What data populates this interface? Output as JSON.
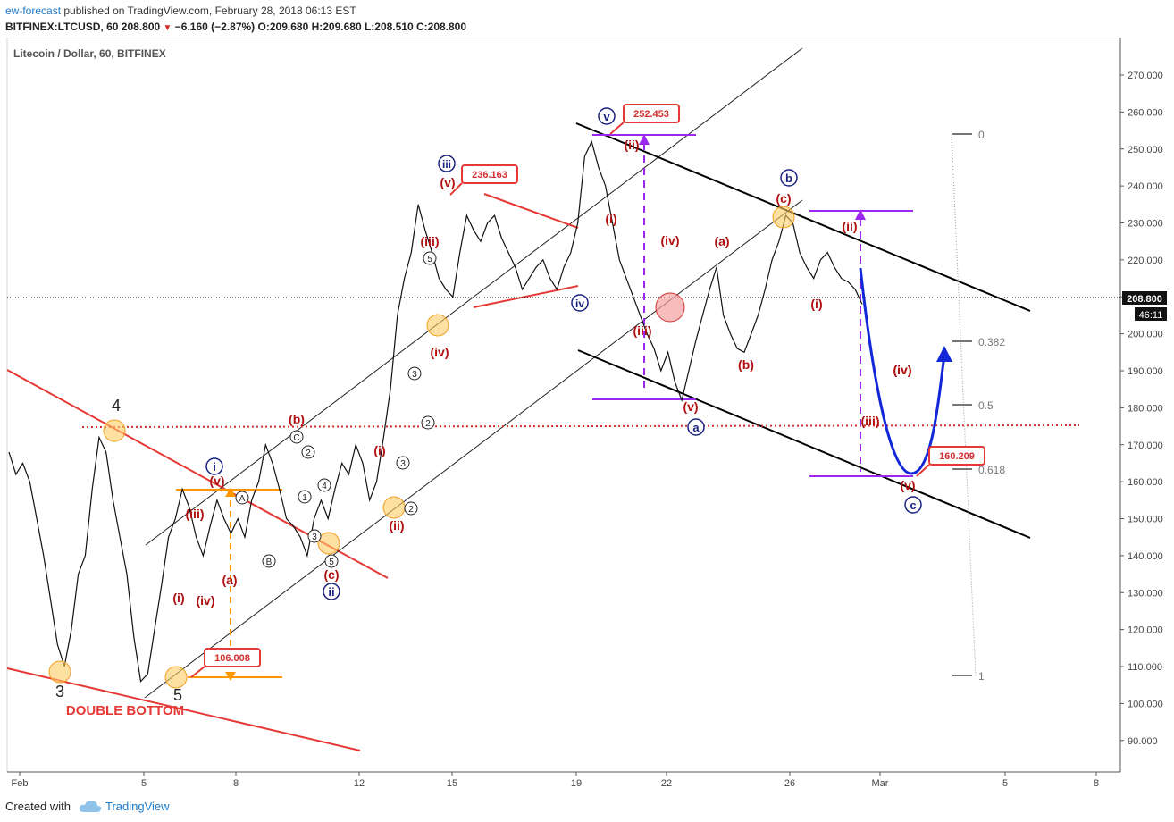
{
  "header": {
    "author": "ew-forecast",
    "published": "published on TradingView.com, February 28, 2018 06:13 EST",
    "symbol": "BITFINEX:LTCUSD, 60",
    "change_arrow": "▼",
    "change": "−6.160 (−2.87%)",
    "ohlc": "O:209.680 H:209.680 L:208.510 C:208.800"
  },
  "chart_data": {
    "type": "line",
    "title": "Litecoin / Dollar, 60, BITFINEX",
    "xlabel": "",
    "ylabel": "",
    "ylim": [
      83,
      277
    ],
    "x_ticks": [
      "Feb",
      "5",
      "8",
      "12",
      "15",
      "19",
      "22",
      "26",
      "Mar",
      "5",
      "8"
    ],
    "y_ticks": [
      "90.000",
      "100.000",
      "110.000",
      "120.000",
      "130.000",
      "140.000",
      "150.000",
      "160.000",
      "170.000",
      "180.000",
      "190.000",
      "200.000",
      "210.000",
      "220.000",
      "230.000",
      "240.000",
      "250.000",
      "260.000",
      "270.000"
    ],
    "series": [
      {
        "values": [
          168,
          162,
          165,
          160,
          150,
          140,
          128,
          116,
          110,
          120,
          135,
          140,
          158,
          172,
          168,
          155,
          145,
          135,
          118,
          106,
          108,
          120,
          132,
          145,
          150,
          158,
          153,
          145,
          140,
          148,
          155,
          150,
          146,
          150,
          145,
          155,
          160,
          170,
          165,
          158,
          150,
          148,
          145,
          140,
          150,
          155,
          150,
          158,
          165,
          162,
          170,
          165,
          155,
          160,
          172,
          185,
          205,
          215,
          222,
          235,
          228,
          222,
          215,
          212,
          210,
          222,
          232,
          228,
          225,
          230,
          232,
          226,
          222,
          218,
          212,
          215,
          218,
          220,
          215,
          212,
          218,
          222,
          230,
          248,
          252,
          245,
          240,
          230,
          220,
          215,
          210,
          205,
          200,
          196,
          190,
          195,
          187,
          182,
          190,
          198,
          205,
          212,
          218,
          205,
          200,
          196,
          195,
          200,
          205,
          212,
          220,
          225,
          232,
          230,
          222,
          218,
          215,
          220,
          222,
          218,
          215,
          214,
          212,
          208
        ]
      }
    ],
    "price_label": "208.800",
    "countdown": "46:11",
    "price_callouts": [
      "252.453",
      "236.163",
      "106.008",
      "160.209"
    ],
    "fib_levels": [
      "0",
      "0.382",
      "0.5",
      "0.618",
      "1"
    ],
    "wave_labels_red": [
      "(b)",
      "(i)",
      "(iii)",
      "(v)",
      "(iv)",
      "(a)",
      "(c)",
      "(ii)",
      "(i)",
      "(iv)",
      "(iii)",
      "(v)",
      "(iv)",
      "(ii)",
      "(i)",
      "(iii)",
      "(iv)",
      "(a)",
      "(b)",
      "(v)",
      "(c)",
      "(ii)",
      "(i)",
      "(iv)",
      "(iii)",
      "(v)"
    ],
    "wave_labels_blue": [
      "i",
      "ii",
      "iii",
      "iv",
      "v",
      "a",
      "b",
      "c"
    ],
    "wave_labels_black": [
      "4",
      "3",
      "5"
    ],
    "wave_labels_circled": [
      "A",
      "B",
      "C",
      "1",
      "2",
      "3",
      "4",
      "5"
    ],
    "annotation": "DOUBLE BOTTOM"
  },
  "footer": {
    "created_with": "Created with",
    "brand": "TradingView"
  }
}
